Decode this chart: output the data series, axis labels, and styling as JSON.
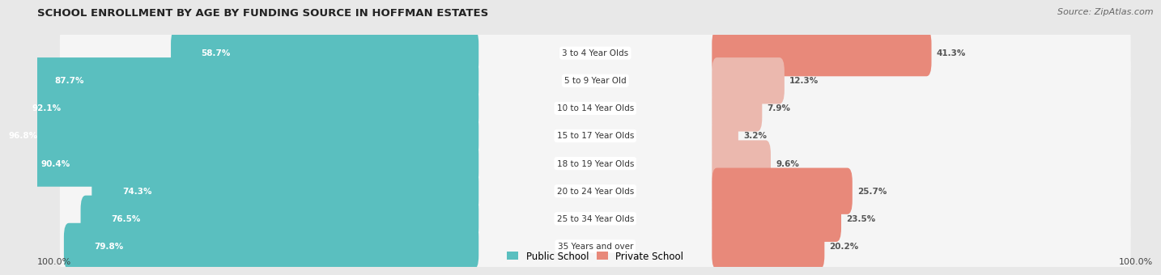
{
  "title": "SCHOOL ENROLLMENT BY AGE BY FUNDING SOURCE IN HOFFMAN ESTATES",
  "source": "Source: ZipAtlas.com",
  "categories": [
    "3 to 4 Year Olds",
    "5 to 9 Year Old",
    "10 to 14 Year Olds",
    "15 to 17 Year Olds",
    "18 to 19 Year Olds",
    "20 to 24 Year Olds",
    "25 to 34 Year Olds",
    "35 Years and over"
  ],
  "public_values": [
    58.7,
    87.7,
    92.1,
    96.8,
    90.4,
    74.3,
    76.5,
    79.8
  ],
  "private_values": [
    41.3,
    12.3,
    7.9,
    3.2,
    9.6,
    25.7,
    23.5,
    20.2
  ],
  "public_color": "#5abfbf",
  "private_color": "#e8897a",
  "private_color_light": "#ebb8ae",
  "bg_color": "#e8e8e8",
  "row_bg_color": "#f5f5f5",
  "legend_public": "Public School",
  "legend_private": "Private School",
  "axis_label_left": "100.0%",
  "axis_label_right": "100.0%",
  "title_fontsize": 9.5,
  "source_fontsize": 8,
  "label_fontsize": 7.5,
  "cat_fontsize": 7.5
}
